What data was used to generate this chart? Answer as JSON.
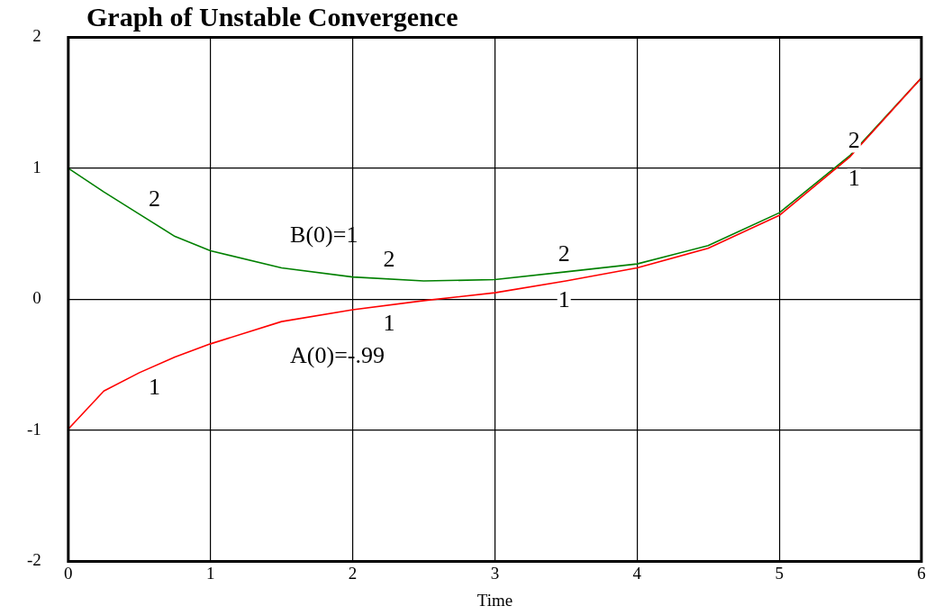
{
  "chart_data": {
    "type": "line",
    "title": "Graph of Unstable Convergence",
    "xlabel": "Time",
    "x": [
      0,
      0.25,
      0.5,
      0.75,
      1,
      1.5,
      2,
      2.5,
      3,
      3.5,
      4,
      4.5,
      5,
      5.5,
      6
    ],
    "series": [
      {
        "name": "1",
        "color": "#ff0000",
        "values": [
          -0.99,
          -0.7,
          -0.56,
          -0.44,
          -0.34,
          -0.17,
          -0.08,
          -0.01,
          0.05,
          0.14,
          0.24,
          0.39,
          0.64,
          1.09,
          1.69
        ]
      },
      {
        "name": "2",
        "color": "#008000",
        "values": [
          1.0,
          0.82,
          0.65,
          0.48,
          0.37,
          0.24,
          0.17,
          0.14,
          0.15,
          0.21,
          0.27,
          0.41,
          0.66,
          1.1,
          1.69
        ]
      }
    ],
    "xlim": [
      0,
      6
    ],
    "xticks": [
      0,
      1,
      2,
      3,
      4,
      5,
      6
    ],
    "ylim": [
      -2,
      2
    ],
    "yticks": [
      -2,
      -1,
      0,
      1,
      2
    ],
    "grid": true,
    "legend": false,
    "marker": "none",
    "line_style": "solid",
    "annotations": [
      "B(0)=1",
      "A(0)=-.99"
    ]
  }
}
